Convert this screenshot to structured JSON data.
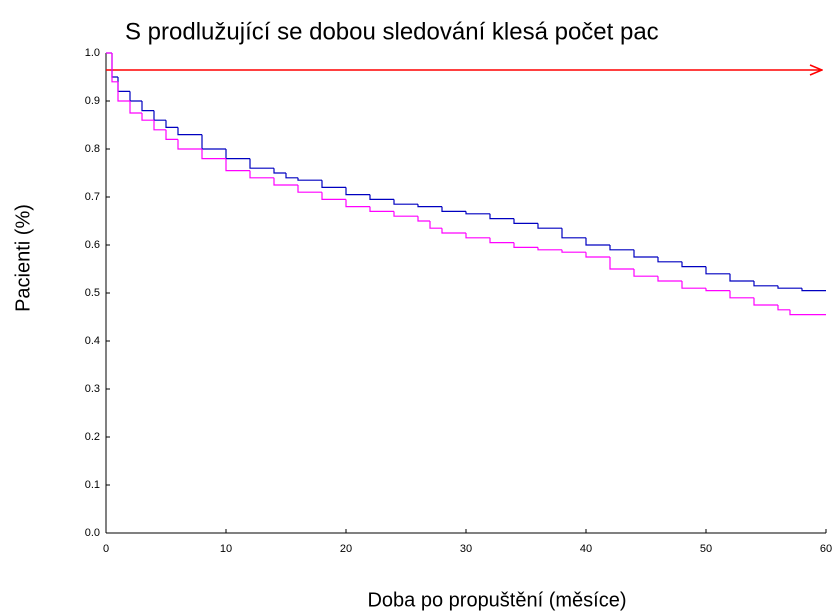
{
  "chart_data": {
    "type": "step",
    "title": "S prodlužující se dobou sledování klesá počet pac",
    "x_label": "Doba po propuštění (měsíce)",
    "y_label": "Pacienti (%)",
    "xlim": [
      0,
      60
    ],
    "ylim": [
      0,
      1
    ],
    "xticks": [
      0,
      10,
      20,
      30,
      40,
      50,
      60
    ],
    "yticks": [
      {
        "value": 0,
        "label": "0.0"
      },
      0.1,
      0.2,
      0.3,
      0.4,
      0.5,
      0.6,
      0.7,
      0.8,
      0.9,
      {
        "value": 1,
        "label": "1.0"
      }
    ],
    "arrow_color": "#ff0000",
    "series": [
      {
        "color": "#0000c0",
        "x": [
          0,
          0.5,
          1,
          2,
          3,
          4,
          5,
          6,
          8,
          10,
          12,
          14,
          15,
          16,
          18,
          20,
          22,
          24,
          26,
          28,
          30,
          32,
          34,
          36,
          38,
          40,
          42,
          44,
          46,
          48,
          50,
          52,
          54,
          56,
          58,
          60
        ],
        "values": [
          1.0,
          0.95,
          0.92,
          0.9,
          0.88,
          0.86,
          0.845,
          0.83,
          0.8,
          0.78,
          0.76,
          0.75,
          0.74,
          0.735,
          0.72,
          0.705,
          0.695,
          0.685,
          0.68,
          0.67,
          0.665,
          0.655,
          0.645,
          0.635,
          0.615,
          0.6,
          0.59,
          0.575,
          0.565,
          0.555,
          0.54,
          0.525,
          0.515,
          0.51,
          0.505,
          0.505
        ]
      },
      {
        "color": "#ff00ff",
        "x": [
          0,
          0.5,
          1,
          2,
          3,
          4,
          5,
          6,
          8,
          10,
          12,
          14,
          16,
          18,
          20,
          22,
          24,
          26,
          27,
          28,
          30,
          32,
          34,
          36,
          38,
          40,
          42,
          44,
          46,
          48,
          50,
          52,
          54,
          56,
          57,
          60
        ],
        "values": [
          1.0,
          0.94,
          0.9,
          0.875,
          0.86,
          0.84,
          0.82,
          0.8,
          0.78,
          0.755,
          0.74,
          0.725,
          0.71,
          0.695,
          0.68,
          0.67,
          0.66,
          0.65,
          0.635,
          0.625,
          0.615,
          0.605,
          0.595,
          0.59,
          0.585,
          0.575,
          0.55,
          0.535,
          0.525,
          0.51,
          0.505,
          0.49,
          0.475,
          0.465,
          0.455,
          0.455
        ]
      }
    ]
  }
}
